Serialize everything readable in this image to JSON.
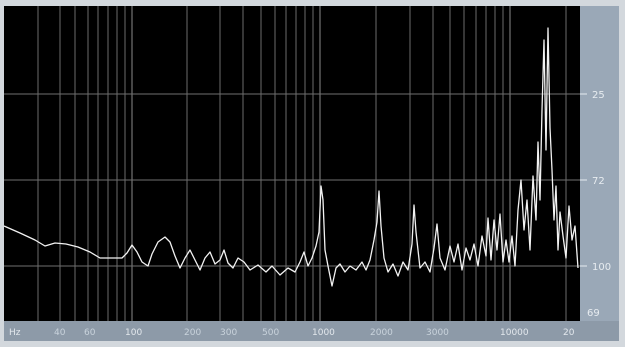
{
  "analyzer": {
    "unit_label": "Hz",
    "y_labels": [
      "25",
      "72",
      "100",
      "69"
    ],
    "x_labels": [
      "Hz",
      "40",
      "60",
      "100",
      "200",
      "300",
      "500",
      "1000",
      "2000",
      "3000",
      "10000",
      "20"
    ],
    "colors": {
      "background": "#000000",
      "trace": "#f2f2f2",
      "grid": "#6b6b6b",
      "scale_panel": "#9aa8b7"
    }
  }
}
